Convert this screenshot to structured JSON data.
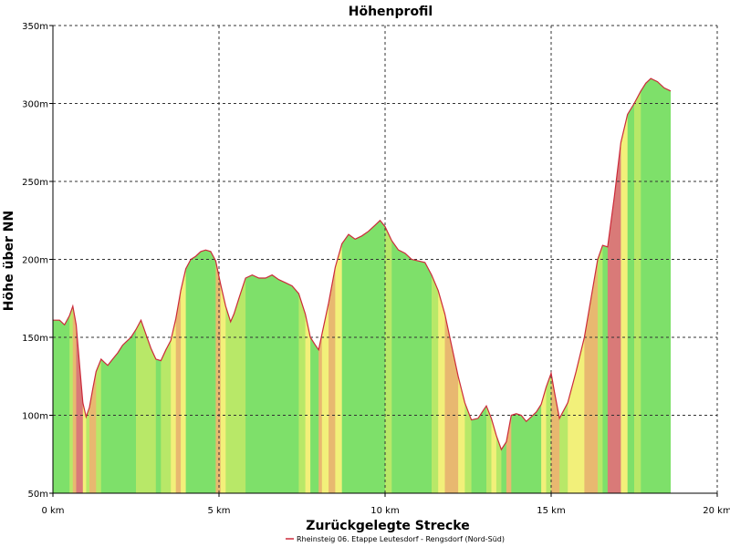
{
  "chart_data": {
    "type": "area",
    "title": "Höhenprofil",
    "xlabel": "Zurückgelegte Strecke",
    "ylabel": "Höhe über NN",
    "xlim": [
      0,
      20
    ],
    "ylim": [
      50,
      350
    ],
    "x_ticks": [
      0,
      5,
      10,
      15,
      20
    ],
    "x_tick_labels": [
      "0 km",
      "5 km",
      "10 km",
      "15 km",
      "20 km"
    ],
    "y_ticks": [
      50,
      100,
      150,
      200,
      250,
      300,
      350
    ],
    "y_tick_labels": [
      "50m",
      "100m",
      "150m",
      "200m",
      "250m",
      "300m",
      "350m"
    ],
    "grid": true,
    "legend_position": "bottom",
    "series": [
      {
        "name": "Rheinsteig 06. Etappe Leutesdorf - Rengsdorf (Nord-Süd)",
        "line_color": "#cc2a3a",
        "x": [
          0,
          0.2,
          0.35,
          0.5,
          0.6,
          0.7,
          0.8,
          0.9,
          1.0,
          1.1,
          1.2,
          1.3,
          1.45,
          1.55,
          1.65,
          1.8,
          1.95,
          2.1,
          2.2,
          2.35,
          2.5,
          2.65,
          2.8,
          2.95,
          3.1,
          3.25,
          3.4,
          3.55,
          3.7,
          3.85,
          4.0,
          4.15,
          4.3,
          4.45,
          4.6,
          4.75,
          4.9,
          5.05,
          5.2,
          5.35,
          5.45,
          5.6,
          5.8,
          6.0,
          6.2,
          6.4,
          6.6,
          6.8,
          7.0,
          7.2,
          7.4,
          7.6,
          7.75,
          7.9,
          8.0,
          8.1,
          8.3,
          8.5,
          8.7,
          8.9,
          9.1,
          9.3,
          9.5,
          9.7,
          9.85,
          10.0,
          10.2,
          10.4,
          10.6,
          10.8,
          11.0,
          11.2,
          11.4,
          11.6,
          11.8,
          12.0,
          12.2,
          12.4,
          12.6,
          12.8,
          12.95,
          13.05,
          13.2,
          13.35,
          13.5,
          13.65,
          13.8,
          13.95,
          14.1,
          14.25,
          14.4,
          14.55,
          14.7,
          14.85,
          15.0,
          15.1,
          15.25,
          15.5,
          15.75,
          16.0,
          16.2,
          16.4,
          16.55,
          16.7,
          16.9,
          17.1,
          17.3,
          17.5,
          17.7,
          17.85,
          18.0,
          18.2,
          18.4,
          18.6
        ],
        "y": [
          161,
          161,
          158,
          164,
          170,
          158,
          133,
          108,
          99,
          105,
          117,
          128,
          136,
          134,
          132,
          136,
          140,
          145,
          147,
          150,
          155,
          161,
          152,
          143,
          136,
          135,
          142,
          148,
          162,
          180,
          194,
          200,
          202,
          205,
          206,
          205,
          199,
          184,
          170,
          160,
          165,
          175,
          188,
          190,
          188,
          188,
          190,
          187,
          185,
          183,
          178,
          165,
          150,
          145,
          142,
          152,
          172,
          195,
          210,
          216,
          213,
          215,
          218,
          222,
          225,
          221,
          212,
          206,
          204,
          200,
          199,
          198,
          190,
          180,
          165,
          145,
          125,
          108,
          97,
          98,
          103,
          106,
          98,
          87,
          78,
          83,
          100,
          101,
          100,
          96,
          99,
          102,
          107,
          118,
          127,
          115,
          98,
          108,
          128,
          150,
          175,
          200,
          209,
          208,
          240,
          275,
          293,
          300,
          308,
          313,
          316,
          314,
          310,
          308
        ]
      }
    ]
  }
}
